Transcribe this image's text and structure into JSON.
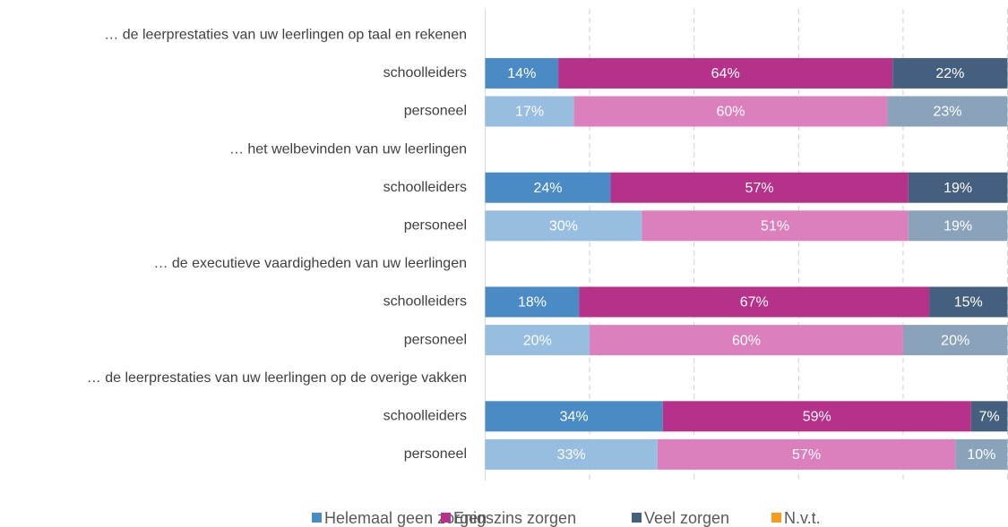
{
  "chart_data": {
    "type": "stacked-bar-horizontal",
    "categories": [
      "… de leerprestaties van uw leerlingen op taal en rekenen",
      "schoolleiders",
      "personeel",
      "… het welbevinden van uw leerlingen",
      "schoolleiders",
      "personeel",
      "… de executieve vaardigheden van uw leerlingen",
      "schoolleiders",
      "personeel",
      "… de leerprestaties van uw leerlingen op de overige vakken",
      "schoolleiders",
      "personeel"
    ],
    "series": [
      {
        "name": "Helemaal geen zorgen",
        "color": "#4a8bc5",
        "light_color": "#97bde0",
        "values": [
          null,
          14,
          17,
          null,
          24,
          30,
          null,
          18,
          20,
          null,
          34,
          33
        ],
        "value_labels": [
          null,
          "14%",
          "17%",
          null,
          "24%",
          "30%",
          null,
          "18%",
          "20%",
          null,
          "34%",
          "33%"
        ]
      },
      {
        "name": "Enigszins zorgen",
        "color": "#b5318a",
        "light_color": "#dc7fbd",
        "values": [
          null,
          64,
          60,
          null,
          57,
          51,
          null,
          67,
          60,
          null,
          59,
          57
        ],
        "value_labels": [
          null,
          "64%",
          "60%",
          null,
          "57%",
          "51%",
          null,
          "67%",
          "60%",
          null,
          "59%",
          "57%"
        ]
      },
      {
        "name": "Veel zorgen",
        "color": "#44607e",
        "light_color": "#8aa2ba",
        "values": [
          null,
          22,
          23,
          null,
          19,
          19,
          null,
          15,
          20,
          null,
          7,
          10
        ],
        "value_labels": [
          null,
          "22%",
          "23%",
          null,
          "19%",
          "19%",
          null,
          "15%",
          "20%",
          null,
          "7%",
          "10%"
        ]
      },
      {
        "name": "N.v.t.",
        "color": "#f59c1a",
        "light_color": "#f8c27a",
        "values": [
          null,
          null,
          null,
          null,
          null,
          null,
          null,
          null,
          null,
          null,
          null,
          null
        ]
      }
    ],
    "xlim": [
      0,
      100
    ],
    "xticks": [
      0,
      20,
      40,
      60,
      80,
      100
    ],
    "grid": true,
    "legend": "bottom"
  }
}
